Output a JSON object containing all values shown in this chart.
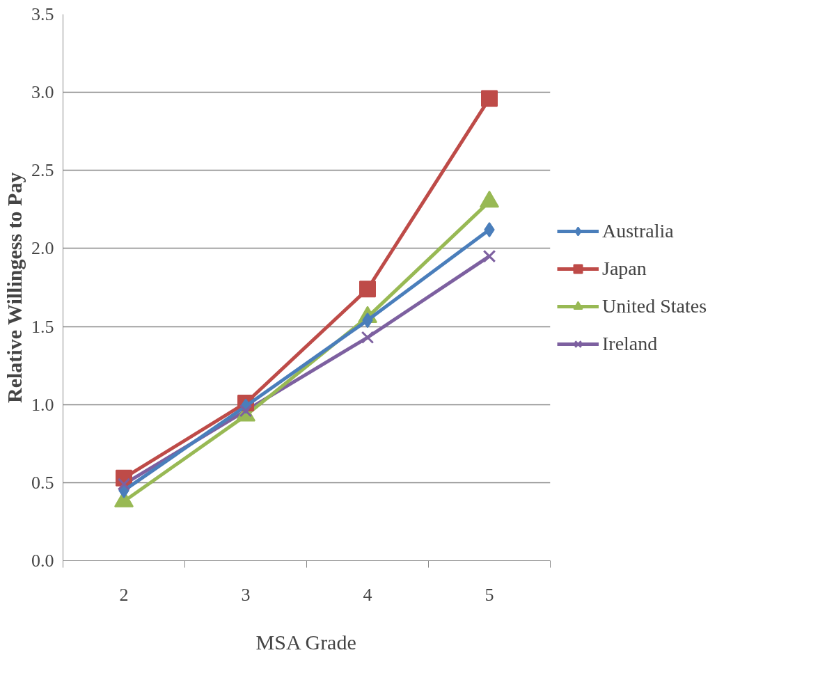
{
  "chart_data": {
    "type": "line",
    "xlabel": "MSA Grade",
    "ylabel": "Relative Willingess to Pay",
    "categories": [
      "2",
      "3",
      "4",
      "5"
    ],
    "series": [
      {
        "name": "Australia",
        "color": "#4a7ebb",
        "marker": "diamond",
        "values": [
          0.45,
          0.99,
          1.54,
          2.12
        ]
      },
      {
        "name": "Japan",
        "color": "#be4b48",
        "marker": "square",
        "values": [
          0.53,
          1.01,
          1.74,
          2.96
        ]
      },
      {
        "name": "United States",
        "color": "#98b954",
        "marker": "triangle",
        "values": [
          0.38,
          0.93,
          1.56,
          2.3
        ]
      },
      {
        "name": "Ireland",
        "color": "#7d60a0",
        "marker": "cross",
        "values": [
          0.49,
          0.96,
          1.43,
          1.95
        ]
      }
    ],
    "ylim": [
      0,
      3.5
    ],
    "yticks": [
      {
        "value": 0,
        "label": "0.0"
      },
      {
        "value": 0.5,
        "label": "0.5"
      },
      {
        "value": 1,
        "label": "1.0"
      },
      {
        "value": 1.5,
        "label": "1.5"
      },
      {
        "value": 2,
        "label": "2.0"
      },
      {
        "value": 2.5,
        "label": "2.5"
      },
      {
        "value": 3,
        "label": "3.0"
      },
      {
        "value": 3.5,
        "label": "3.5"
      }
    ],
    "grid": "y",
    "legend": "right",
    "line_style": "solid"
  }
}
